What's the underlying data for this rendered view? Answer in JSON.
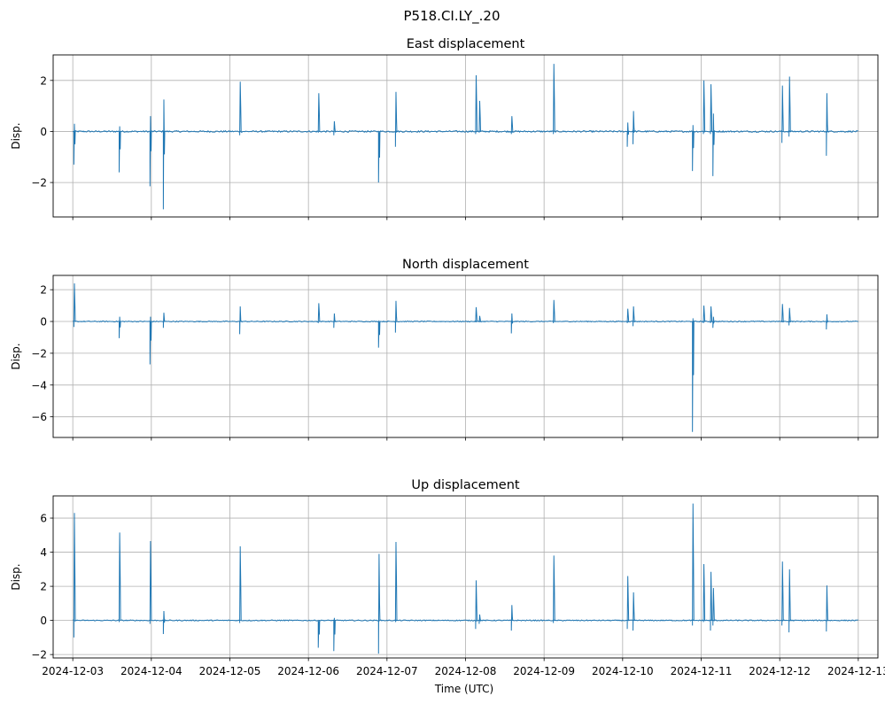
{
  "suptitle": "P518.CI.LY_.20",
  "x_tick_labels": [
    "2024-12-03",
    "2024-12-04",
    "2024-12-05",
    "2024-12-06",
    "2024-12-07",
    "2024-12-08",
    "2024-12-09",
    "2024-12-10",
    "2024-12-11",
    "2024-12-12",
    "2024-12-13"
  ],
  "xlabel": "Time (UTC)",
  "line_color": "#1f77b4",
  "chart_data": [
    {
      "type": "line",
      "title": "East displacement",
      "ylabel": "Disp.",
      "xlim": [
        "2024-12-02T18:00",
        "2024-12-13T06:00"
      ],
      "ylim": [
        -3.35,
        3.0
      ],
      "yticks": [
        -2,
        0,
        2
      ],
      "ytick_labels": [
        "−2",
        "0",
        "2"
      ],
      "grid": true,
      "spikes": [
        [
          "2024-12-03T00:20",
          -1.3,
          0.3
        ],
        [
          "2024-12-03T14:10",
          -1.6,
          0.2
        ],
        [
          "2024-12-03T23:35",
          -2.15,
          0.6
        ],
        [
          "2024-12-04T03:40",
          -3.05,
          1.25
        ],
        [
          "2024-12-05T03:00",
          -0.15,
          1.95
        ],
        [
          "2024-12-06T03:00",
          -0.05,
          1.5
        ],
        [
          "2024-12-06T07:45",
          -0.15,
          0.4
        ],
        [
          "2024-12-06T21:25",
          -2.0,
          -0.05
        ],
        [
          "2024-12-07T02:35",
          -0.6,
          1.55
        ],
        [
          "2024-12-08T03:05",
          -0.1,
          2.2
        ],
        [
          "2024-12-08T04:10",
          -0.05,
          1.2
        ],
        [
          "2024-12-08T14:00",
          -0.1,
          0.6
        ],
        [
          "2024-12-09T02:50",
          -0.1,
          2.65
        ],
        [
          "2024-12-10T01:25",
          -0.6,
          0.35
        ],
        [
          "2024-12-10T03:10",
          -0.5,
          0.8
        ],
        [
          "2024-12-10T21:20",
          -1.55,
          0.25
        ],
        [
          "2024-12-11T00:40",
          -0.1,
          2.0
        ],
        [
          "2024-12-11T02:50",
          -0.1,
          1.85
        ],
        [
          "2024-12-11T03:35",
          -1.75,
          0.7
        ],
        [
          "2024-12-12T00:40",
          -0.45,
          1.8
        ],
        [
          "2024-12-12T02:50",
          -0.2,
          2.15
        ],
        [
          "2024-12-12T14:15",
          -0.95,
          1.5
        ]
      ]
    },
    {
      "type": "line",
      "title": "North displacement",
      "ylabel": "Disp.",
      "xlim": [
        "2024-12-02T18:00",
        "2024-12-13T06:00"
      ],
      "ylim": [
        -7.3,
        2.9
      ],
      "yticks": [
        -6,
        -4,
        -2,
        0,
        2
      ],
      "ytick_labels": [
        "−6",
        "−4",
        "−2",
        "0",
        "2"
      ],
      "grid": true,
      "spikes": [
        [
          "2024-12-03T00:20",
          -0.35,
          2.4
        ],
        [
          "2024-12-03T14:10",
          -1.05,
          0.3
        ],
        [
          "2024-12-03T23:35",
          -2.7,
          0.3
        ],
        [
          "2024-12-04T03:40",
          -0.4,
          0.55
        ],
        [
          "2024-12-05T03:00",
          -0.8,
          0.95
        ],
        [
          "2024-12-06T03:00",
          -0.1,
          1.15
        ],
        [
          "2024-12-06T07:45",
          -0.4,
          0.5
        ],
        [
          "2024-12-06T21:25",
          -1.65,
          -0.05
        ],
        [
          "2024-12-07T02:35",
          -0.7,
          1.3
        ],
        [
          "2024-12-08T03:05",
          -0.05,
          0.9
        ],
        [
          "2024-12-08T04:10",
          -0.05,
          0.35
        ],
        [
          "2024-12-08T14:00",
          -0.75,
          0.5
        ],
        [
          "2024-12-09T02:50",
          -0.1,
          1.35
        ],
        [
          "2024-12-10T01:25",
          -0.1,
          0.8
        ],
        [
          "2024-12-10T03:10",
          -0.3,
          0.95
        ],
        [
          "2024-12-10T21:20",
          -6.95,
          0.2
        ],
        [
          "2024-12-11T00:40",
          -0.1,
          1.0
        ],
        [
          "2024-12-11T02:50",
          -0.1,
          0.95
        ],
        [
          "2024-12-11T03:35",
          -0.4,
          0.3
        ],
        [
          "2024-12-12T00:40",
          -0.05,
          1.1
        ],
        [
          "2024-12-12T02:50",
          -0.25,
          0.85
        ],
        [
          "2024-12-12T14:15",
          -0.5,
          0.45
        ]
      ]
    },
    {
      "type": "line",
      "title": "Up displacement",
      "ylabel": "Disp.",
      "xlim": [
        "2024-12-02T18:00",
        "2024-12-13T06:00"
      ],
      "ylim": [
        -2.2,
        7.3
      ],
      "yticks": [
        -2,
        0,
        2,
        4,
        6
      ],
      "ytick_labels": [
        "−2",
        "0",
        "2",
        "4",
        "6"
      ],
      "grid": true,
      "spikes": [
        [
          "2024-12-03T00:20",
          -1.0,
          6.3
        ],
        [
          "2024-12-03T14:10",
          -0.1,
          5.15
        ],
        [
          "2024-12-03T23:35",
          -0.2,
          4.65
        ],
        [
          "2024-12-04T03:40",
          -0.8,
          0.55
        ],
        [
          "2024-12-05T03:00",
          -0.15,
          4.35
        ],
        [
          "2024-12-06T03:00",
          -1.6,
          -0.05
        ],
        [
          "2024-12-06T07:45",
          -1.8,
          0.15
        ],
        [
          "2024-12-06T21:25",
          -1.95,
          3.9
        ],
        [
          "2024-12-07T02:35",
          -0.1,
          4.6
        ],
        [
          "2024-12-08T03:05",
          -0.5,
          2.35
        ],
        [
          "2024-12-08T04:10",
          -0.2,
          0.35
        ],
        [
          "2024-12-08T14:00",
          -0.6,
          0.9
        ],
        [
          "2024-12-09T02:50",
          -0.15,
          3.8
        ],
        [
          "2024-12-10T01:25",
          -0.5,
          2.6
        ],
        [
          "2024-12-10T03:10",
          -0.6,
          1.65
        ],
        [
          "2024-12-10T21:20",
          -0.3,
          6.85
        ],
        [
          "2024-12-11T00:40",
          -0.1,
          3.3
        ],
        [
          "2024-12-11T02:50",
          -0.6,
          2.85
        ],
        [
          "2024-12-11T03:35",
          -0.3,
          1.9
        ],
        [
          "2024-12-12T00:40",
          -0.3,
          3.45
        ],
        [
          "2024-12-12T02:50",
          -0.7,
          3.0
        ],
        [
          "2024-12-12T14:15",
          -0.65,
          2.05
        ]
      ]
    }
  ]
}
